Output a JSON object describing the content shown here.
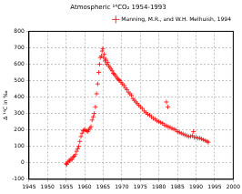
{
  "chart_data": {
    "type": "scatter",
    "title": "Atmospheric ¹⁴CO₂ 1954-1993",
    "y_label": "Δ ¹⁴C in ‰",
    "x": [
      1955.0,
      1955.2,
      1955.5,
      1955.8,
      1956.0,
      1956.3,
      1956.6,
      1956.9,
      1957.2,
      1957.5,
      1957.8,
      1958.1,
      1958.4,
      1958.7,
      1959.0,
      1959.3,
      1959.6,
      1959.9,
      1960.2,
      1960.5,
      1960.8,
      1961.1,
      1961.4,
      1961.7,
      1962.0,
      1962.3,
      1962.6,
      1962.9,
      1963.2,
      1963.5,
      1963.8,
      1964.0,
      1964.2,
      1964.5,
      1964.7,
      1964.9,
      1965.1,
      1965.3,
      1965.5,
      1965.7,
      1965.9,
      1966.2,
      1966.5,
      1966.8,
      1967.1,
      1967.4,
      1967.7,
      1968.0,
      1968.3,
      1968.6,
      1968.9,
      1969.2,
      1969.5,
      1969.8,
      1970.2,
      1970.6,
      1971.0,
      1971.4,
      1971.8,
      1972.2,
      1972.6,
      1973.0,
      1973.4,
      1973.8,
      1974.2,
      1974.6,
      1975.0,
      1975.5,
      1976.0,
      1976.5,
      1977.0,
      1977.5,
      1978.0,
      1978.5,
      1979.0,
      1979.5,
      1980.0,
      1980.5,
      1981.0,
      1981.5,
      1982.0,
      1982.0,
      1982.4,
      1982.5,
      1983.0,
      1983.5,
      1984.0,
      1984.5,
      1985.0,
      1985.5,
      1986.0,
      1986.5,
      1987.0,
      1987.5,
      1988.0,
      1988.5,
      1989.0,
      1989.3,
      1989.5,
      1990.0,
      1990.5,
      1991.0,
      1991.5,
      1992.0,
      1992.5,
      1993.0,
      1993.3
    ],
    "series": [
      {
        "name": "Manning, M.R., and W.H. Melhuish, 1994",
        "color": "#ff0000",
        "marker": "cross",
        "values": [
          -5,
          -10,
          5,
          10,
          15,
          25,
          20,
          35,
          40,
          50,
          70,
          85,
          100,
          130,
          160,
          180,
          195,
          200,
          200,
          195,
          190,
          200,
          210,
          220,
          260,
          280,
          300,
          340,
          420,
          480,
          550,
          600,
          640,
          650,
          680,
          695,
          640,
          660,
          620,
          630,
          600,
          610,
          590,
          580,
          570,
          560,
          545,
          540,
          530,
          520,
          510,
          505,
          500,
          490,
          480,
          470,
          455,
          445,
          430,
          420,
          410,
          390,
          380,
          370,
          360,
          350,
          340,
          330,
          315,
          305,
          295,
          290,
          280,
          270,
          265,
          255,
          250,
          245,
          240,
          230,
          225,
          370,
          340,
          220,
          215,
          210,
          205,
          200,
          190,
          185,
          180,
          175,
          170,
          165,
          160,
          160,
          165,
          190,
          155,
          155,
          150,
          150,
          145,
          140,
          135,
          130,
          125
        ]
      }
    ],
    "xlim": [
      1945,
      2000
    ],
    "xticks": [
      1945,
      1950,
      1955,
      1960,
      1965,
      1970,
      1975,
      1980,
      1985,
      1990,
      1995,
      2000
    ],
    "ylim": [
      -100,
      800
    ],
    "yticks": [
      -100,
      0,
      100,
      200,
      300,
      400,
      500,
      600,
      700,
      800
    ],
    "grid": true,
    "legend": "upper right"
  }
}
